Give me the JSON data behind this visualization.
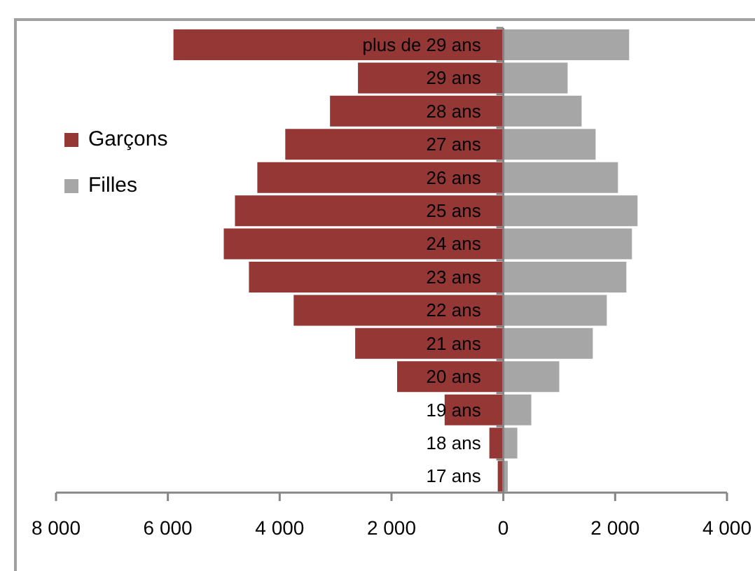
{
  "chart_data": {
    "type": "bar",
    "orientation": "horizontal",
    "stacked": true,
    "categories": [
      "plus de 29 ans",
      "29 ans",
      "28 ans",
      "27 ans",
      "26 ans",
      "25 ans",
      "24 ans",
      "23 ans",
      "22 ans",
      "21 ans",
      "20 ans",
      "19 ans",
      "18 ans",
      "17 ans"
    ],
    "series": [
      {
        "name": "Garçons",
        "color": "#953735",
        "values": [
          -5900,
          -2600,
          -3100,
          -3900,
          -4400,
          -4800,
          -5000,
          -4550,
          -3750,
          -2650,
          -1900,
          -1050,
          -250,
          -100
        ]
      },
      {
        "name": "Filles",
        "color": "#a6a6a6",
        "values": [
          2250,
          1150,
          1400,
          1650,
          2050,
          2400,
          2300,
          2200,
          1850,
          1600,
          1000,
          500,
          250,
          80
        ]
      }
    ],
    "xlim": [
      -8000,
      4000
    ],
    "xticks": [
      {
        "value": -8000,
        "label": "8 000"
      },
      {
        "value": -6000,
        "label": "6 000"
      },
      {
        "value": -4000,
        "label": "4 000"
      },
      {
        "value": -2000,
        "label": "2 000"
      },
      0,
      {
        "value": 2000,
        "label": "2 000"
      },
      {
        "value": 4000,
        "label": "4 000"
      }
    ],
    "legend": "top left"
  }
}
